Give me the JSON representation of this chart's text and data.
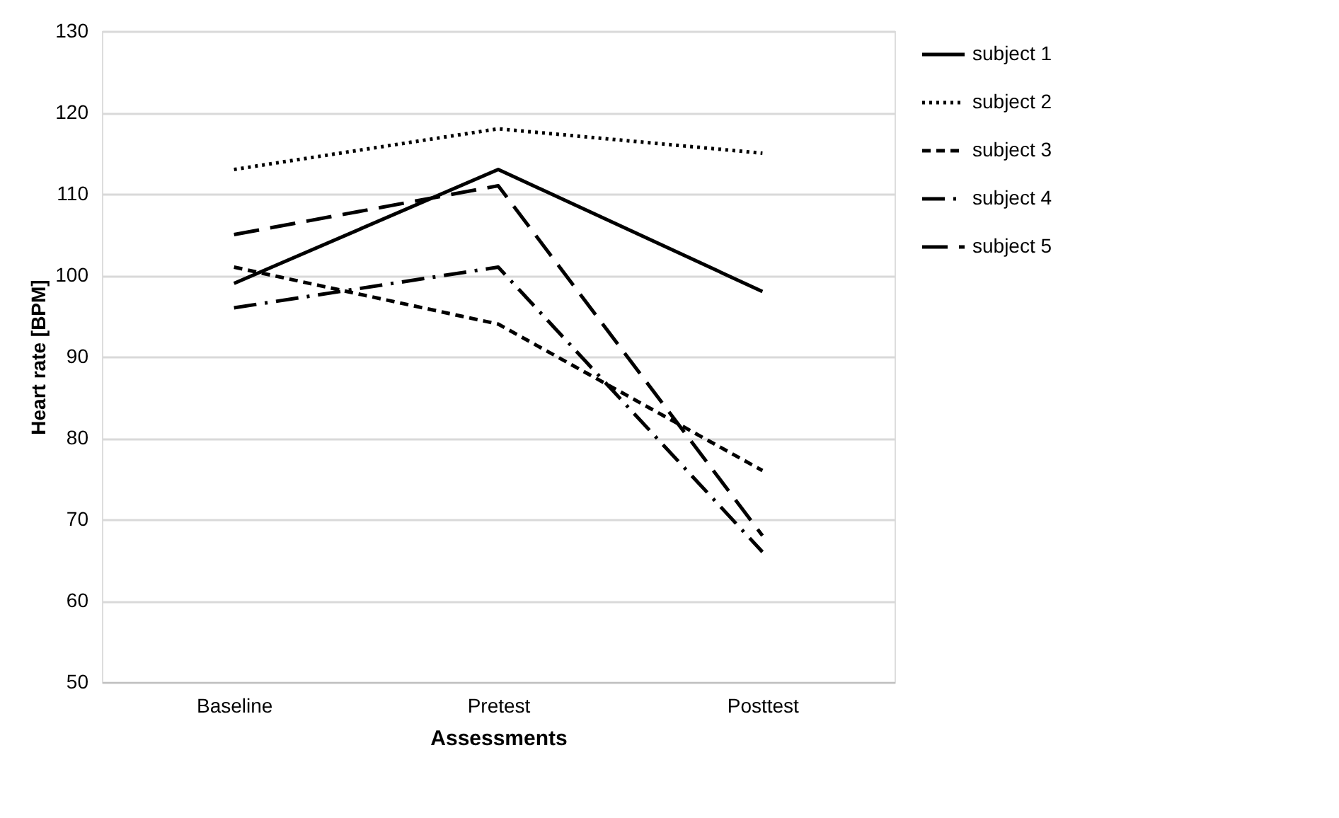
{
  "chart_data": {
    "type": "line",
    "xlabel": "Assessments",
    "ylabel": "Heart rate [BPM]",
    "categories": [
      "Baseline",
      "Pretest",
      "Posttest"
    ],
    "series": [
      {
        "name": "subject 1",
        "color": "#000000",
        "line_style": "solid",
        "values": [
          99,
          113,
          98
        ]
      },
      {
        "name": "subject 2",
        "color": "#000000",
        "line_style": "dotted",
        "values": [
          113,
          118,
          115
        ]
      },
      {
        "name": "subject 3",
        "color": "#000000",
        "line_style": "dashed",
        "values": [
          101,
          94,
          76
        ]
      },
      {
        "name": "subject 4",
        "color": "#000000",
        "line_style": "dashdot",
        "values": [
          96,
          101,
          66
        ]
      },
      {
        "name": "subject 5",
        "color": "#000000",
        "line_style": "longdash",
        "values": [
          105,
          111,
          68
        ]
      }
    ],
    "ylim": [
      50,
      130
    ],
    "yticks": [
      50,
      60,
      70,
      80,
      90,
      100,
      110,
      120,
      130
    ],
    "grid": "y",
    "legend": "right",
    "marker": "none"
  }
}
